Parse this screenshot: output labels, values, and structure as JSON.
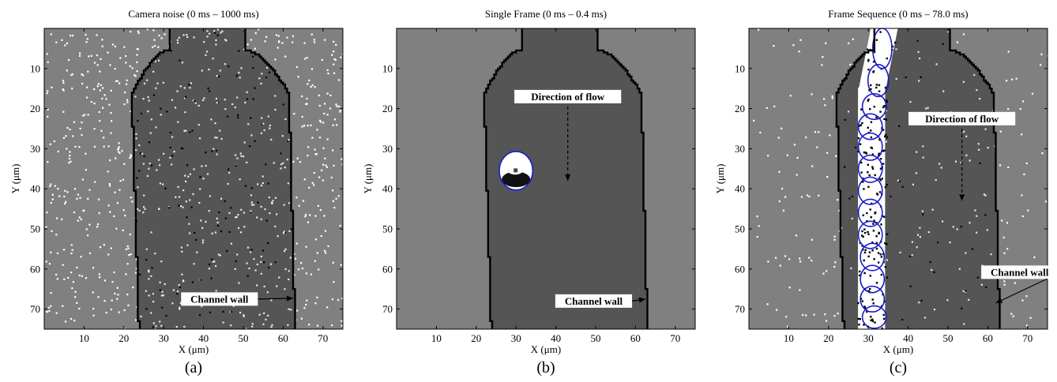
{
  "panels": [
    {
      "id": "a",
      "title": "Camera noise (0 ms – 1000 ms)",
      "caption": "(a)",
      "xlabel": "X (μm)",
      "ylabel": "Y (μm)",
      "show_ylabel": true,
      "annotations": [
        {
          "text": "Channel wall",
          "at": [
            44,
            67.5
          ],
          "arrow_to": [
            62.5,
            67.3
          ]
        }
      ],
      "cells": []
    },
    {
      "id": "b",
      "title": "Single Frame (0 ms – 0.4 ms)",
      "caption": "(b)",
      "xlabel": "X (μm)",
      "ylabel": "Y (μm)",
      "show_ylabel": true,
      "annotations": [
        {
          "text": "Direction of flow",
          "at": [
            43,
            17
          ],
          "arrow_from": [
            43,
            19.5
          ],
          "arrow_to": [
            43,
            38
          ],
          "dashed": true
        },
        {
          "text": "Channel wall",
          "at": [
            49.5,
            68
          ],
          "arrow_to": [
            62.5,
            67.5
          ]
        }
      ],
      "cells": [
        {
          "x": 30,
          "y": 35.5,
          "rx": 4.2,
          "ry": 4.8
        }
      ]
    },
    {
      "id": "c",
      "title": "Frame Sequence (0 ms – 78.0 ms)",
      "caption": "(c)",
      "xlabel": "X (μm)",
      "ylabel": "Y (μm)",
      "show_ylabel": true,
      "annotations": [
        {
          "text": "Direction of flow",
          "at": [
            53.5,
            22.5
          ],
          "arrow_from": [
            53.5,
            25
          ],
          "arrow_to": [
            53.5,
            43
          ],
          "dashed": true
        },
        {
          "text": "Channel wall",
          "at": [
            68,
            60.8
          ],
          "arrow_to": [
            62,
            68.5
          ]
        }
      ],
      "cells": [
        {
          "x": 33.5,
          "y": 5,
          "rx": 2.4,
          "ry": 5
        },
        {
          "x": 32.5,
          "y": 13,
          "rx": 2.6,
          "ry": 4
        },
        {
          "x": 31.5,
          "y": 19.5,
          "rx": 3,
          "ry": 3.2
        },
        {
          "x": 30.5,
          "y": 24.5,
          "rx": 3,
          "ry": 3.2
        },
        {
          "x": 30.5,
          "y": 29.5,
          "rx": 3,
          "ry": 3.4
        },
        {
          "x": 30.5,
          "y": 35,
          "rx": 3,
          "ry": 3.4
        },
        {
          "x": 30.5,
          "y": 40.5,
          "rx": 3,
          "ry": 3.4
        },
        {
          "x": 30.5,
          "y": 46,
          "rx": 3,
          "ry": 3.4
        },
        {
          "x": 30.5,
          "y": 51.5,
          "rx": 3,
          "ry": 3.4
        },
        {
          "x": 31,
          "y": 57,
          "rx": 3,
          "ry": 3.4
        },
        {
          "x": 31,
          "y": 62.5,
          "rx": 3,
          "ry": 3.4
        },
        {
          "x": 31,
          "y": 67.5,
          "rx": 3,
          "ry": 3.2
        },
        {
          "x": 31.5,
          "y": 72,
          "rx": 3,
          "ry": 2.8
        }
      ]
    }
  ],
  "axes": {
    "x_range": [
      0,
      75
    ],
    "y_range": [
      0,
      75
    ],
    "x_ticks": [
      10,
      20,
      30,
      40,
      50,
      60,
      70
    ],
    "y_ticks": [
      10,
      20,
      30,
      40,
      50,
      60,
      70
    ]
  },
  "channel": {
    "y_neck_end": 5.5,
    "y_widen_end": 16.5,
    "neck_left": 31.5,
    "neck_right": 50.5,
    "left_wall_top": 22,
    "left_wall_bottom": 23.8,
    "right_wall_top": 61.5,
    "right_wall_bottom": 63
  },
  "colors": {
    "outside": "#808080",
    "channel": "#555555",
    "wall": "#000000",
    "cell_outline": "#1a1acc",
    "cell_fill": "#ffffff"
  }
}
